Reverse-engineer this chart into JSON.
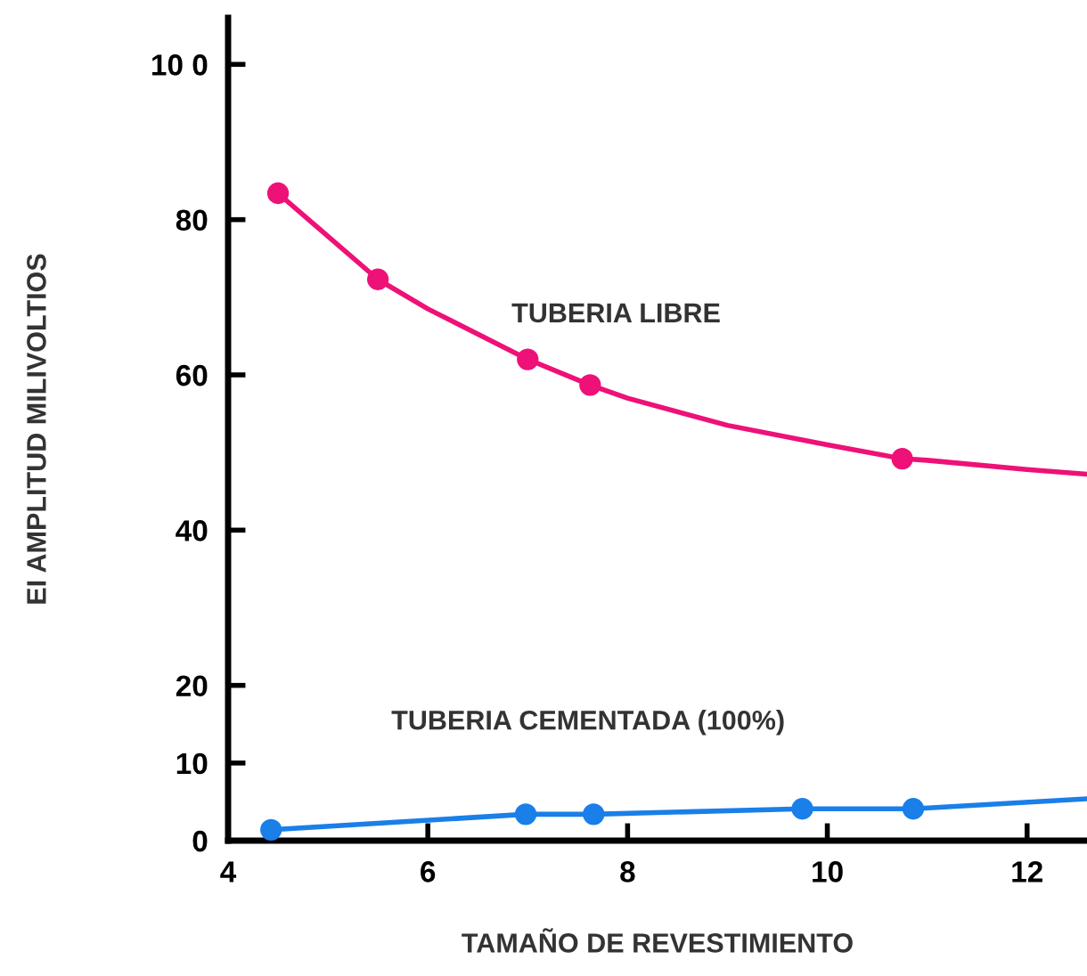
{
  "chart_data": {
    "type": "line",
    "xlabel": "TAMAÑO DE REVESTIMIENTO",
    "ylabel": "EI AMPLITUD MILIVOLTIOS",
    "xlim": [
      4,
      12.6
    ],
    "ylim": [
      0,
      106
    ],
    "xticks": [
      4,
      6,
      8,
      10,
      12
    ],
    "yticks": [
      0,
      10,
      20,
      40,
      60,
      80,
      {
        "value": 100,
        "label": "10 0"
      }
    ],
    "grid": false,
    "legend": false,
    "series": [
      {
        "name": "TUBERIA LIBRE",
        "color": "#ee1177",
        "marker": "none",
        "x": [
          4.5,
          5.5,
          6,
          7,
          7.625,
          8,
          9,
          10,
          10.75,
          11,
          12,
          12.6
        ],
        "values": [
          83.4,
          72.3,
          68.5,
          62,
          58.7,
          57,
          53.5,
          51,
          49.2,
          49,
          47.8,
          47.2
        ]
      },
      {
        "type": "scatter",
        "color": "#ee1177",
        "marker": "circle",
        "x": [
          4.5,
          5.5,
          7,
          7.625,
          10.75
        ],
        "values": [
          83.4,
          72.3,
          62,
          58.7,
          49.2
        ]
      },
      {
        "name": "TUBERIA CEMENTADA (100%)",
        "color": "#1a7fe8",
        "marker": "none",
        "x": [
          4.43,
          6.98,
          7.66,
          9.75,
          10.86,
          12.6
        ],
        "values": [
          1.4,
          3.4,
          3.4,
          4.1,
          4.1,
          5.4
        ]
      },
      {
        "type": "scatter",
        "color": "#1a7fe8",
        "marker": "circle",
        "x": [
          4.43,
          6.98,
          7.66,
          9.75,
          10.86
        ],
        "values": [
          1.4,
          3.4,
          3.4,
          4.1,
          4.1
        ]
      }
    ]
  }
}
